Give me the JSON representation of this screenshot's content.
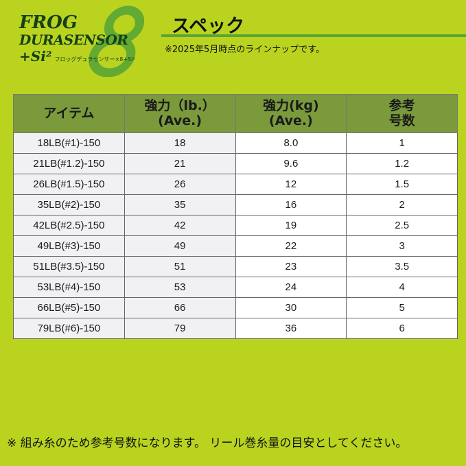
{
  "logo": {
    "line1": "FROG",
    "line2": "DURASENSOR",
    "line3": "+Si²",
    "eight": "8",
    "kana": "フロッグデュラセンサー×8+Si²"
  },
  "title": "スペック",
  "subnote": "※2025年5月時点のラインナップです。",
  "colors": {
    "background": "#bad31f",
    "header": "#7a9a3c",
    "accent": "#5aa635"
  },
  "table": {
    "headers": [
      [
        "アイテム",
        ""
      ],
      [
        "強力（lb.）",
        "(Ave.)"
      ],
      [
        "強力(kg)",
        "(Ave.)"
      ],
      [
        "参考",
        "号数"
      ]
    ],
    "rows": [
      [
        "18LB(#1)-150",
        "18",
        "8.0",
        "1"
      ],
      [
        "21LB(#1.2)-150",
        "21",
        "9.6",
        "1.2"
      ],
      [
        "26LB(#1.5)-150",
        "26",
        "12",
        "1.5"
      ],
      [
        "35LB(#2)-150",
        "35",
        "16",
        "2"
      ],
      [
        "42LB(#2.5)-150",
        "42",
        "19",
        "2.5"
      ],
      [
        "49LB(#3)-150",
        "49",
        "22",
        "3"
      ],
      [
        "51LB(#3.5)-150",
        "51",
        "23",
        "3.5"
      ],
      [
        "53LB(#4)-150",
        "53",
        "24",
        "4"
      ],
      [
        "66LB(#5)-150",
        "66",
        "30",
        "5"
      ],
      [
        "79LB(#6)-150",
        "79",
        "36",
        "6"
      ]
    ]
  },
  "footnote": "※ 組み糸のため参考号数になります。 リール巻糸量の目安としてください。"
}
